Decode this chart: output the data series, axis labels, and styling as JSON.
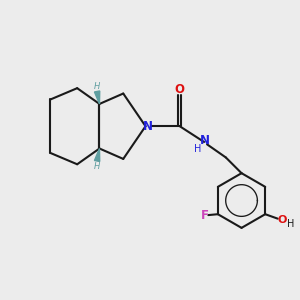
{
  "background_color": "#ececec",
  "bond_color": "#1a1a1a",
  "N_color": "#2222dd",
  "O_color": "#dd1111",
  "F_color": "#cc44bb",
  "H_stereo_color": "#5f9ea0",
  "figsize": [
    3.0,
    3.0
  ],
  "dpi": 100,
  "xlim": [
    0,
    10
  ],
  "ylim": [
    0,
    10
  ]
}
